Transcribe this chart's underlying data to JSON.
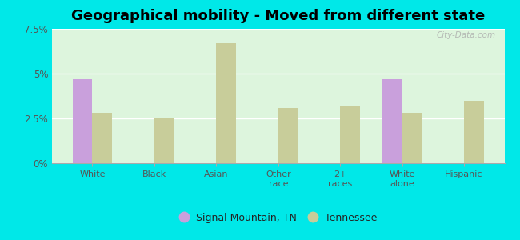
{
  "title": "Geographical mobility - Moved from different state",
  "categories": [
    "White",
    "Black",
    "Asian",
    "Other\nrace",
    "2+\nraces",
    "White\nalone",
    "Hispanic"
  ],
  "signal_mountain": [
    4.7,
    0,
    0,
    0,
    0,
    4.7,
    0
  ],
  "tennessee": [
    2.8,
    2.55,
    6.7,
    3.1,
    3.15,
    2.8,
    3.5
  ],
  "signal_color": "#c9a0dc",
  "tennessee_color": "#c8cd9a",
  "background_color": "#ddf5dd",
  "outer_background": "#00e8e8",
  "ylim": [
    0,
    7.5
  ],
  "yticks": [
    0,
    2.5,
    5.0,
    7.5
  ],
  "ytick_labels": [
    "0%",
    "2.5%",
    "5%",
    "7.5%"
  ],
  "bar_width": 0.32,
  "legend_labels": [
    "Signal Mountain, TN",
    "Tennessee"
  ],
  "title_fontsize": 13
}
